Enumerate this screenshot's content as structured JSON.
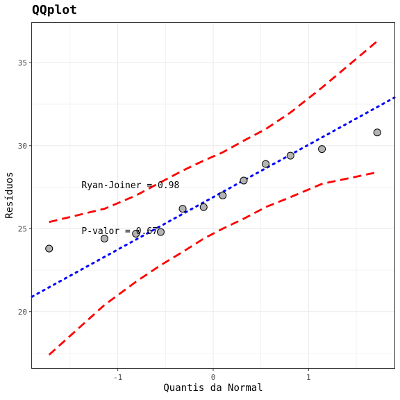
{
  "chart_data": {
    "type": "scatter",
    "title": "QQplot",
    "xlabel": "Quantis da Normal",
    "ylabel": "Resíduos",
    "xlim": [
      -1.9,
      1.9
    ],
    "ylim": [
      16.6,
      37.4
    ],
    "x_ticks": [
      -1,
      0,
      1
    ],
    "x_tick_labels": [
      "-1",
      "0",
      "1"
    ],
    "x_minor_ticks": [
      -1.5,
      -0.5,
      0.5,
      1.5
    ],
    "y_ticks": [
      20,
      25,
      30,
      35
    ],
    "y_tick_labels": [
      "20",
      "25",
      "30",
      "35"
    ],
    "y_minor_ticks": [
      17.5,
      22.5,
      27.5,
      32.5
    ],
    "grid": true,
    "points": {
      "x": [
        -1.72,
        -1.14,
        -0.81,
        -0.55,
        -0.32,
        -0.1,
        0.1,
        0.32,
        0.55,
        0.81,
        1.14,
        1.72
      ],
      "y": [
        23.8,
        24.4,
        24.7,
        24.8,
        26.2,
        26.3,
        27.0,
        27.9,
        28.9,
        29.4,
        29.8,
        30.8
      ],
      "fill": "#b3b3b3",
      "stroke": "#000000"
    },
    "reference_line": {
      "x": [
        -1.9,
        1.9
      ],
      "y": [
        20.9,
        32.9
      ],
      "color": "#0000ff",
      "style": "dotted"
    },
    "confidence_bands": {
      "color": "#ff0000",
      "style": "dashed",
      "upper": {
        "x": [
          -1.72,
          -1.14,
          -0.81,
          -0.55,
          -0.32,
          -0.1,
          0.1,
          0.32,
          0.55,
          0.81,
          1.14,
          1.72
        ],
        "y": [
          25.4,
          26.2,
          27.0,
          27.8,
          28.5,
          29.1,
          29.6,
          30.3,
          31.0,
          32.0,
          33.5,
          36.3
        ]
      },
      "lower": {
        "x": [
          -1.72,
          -1.14,
          -0.81,
          -0.55,
          -0.32,
          -0.1,
          0.1,
          0.32,
          0.55,
          0.81,
          1.14,
          1.72
        ],
        "y": [
          17.4,
          20.4,
          21.8,
          22.8,
          23.6,
          24.4,
          25.0,
          25.6,
          26.3,
          26.9,
          27.7,
          28.4
        ]
      }
    },
    "annotations": [
      {
        "text": "Ryan-Joiner = 0.98",
        "x": -1.38,
        "y": 27.6
      },
      {
        "text": "P-valor = 0.67",
        "x": -1.38,
        "y": 24.85
      }
    ],
    "panel_border_color": "#333333",
    "grid_color": "#ebebeb"
  }
}
